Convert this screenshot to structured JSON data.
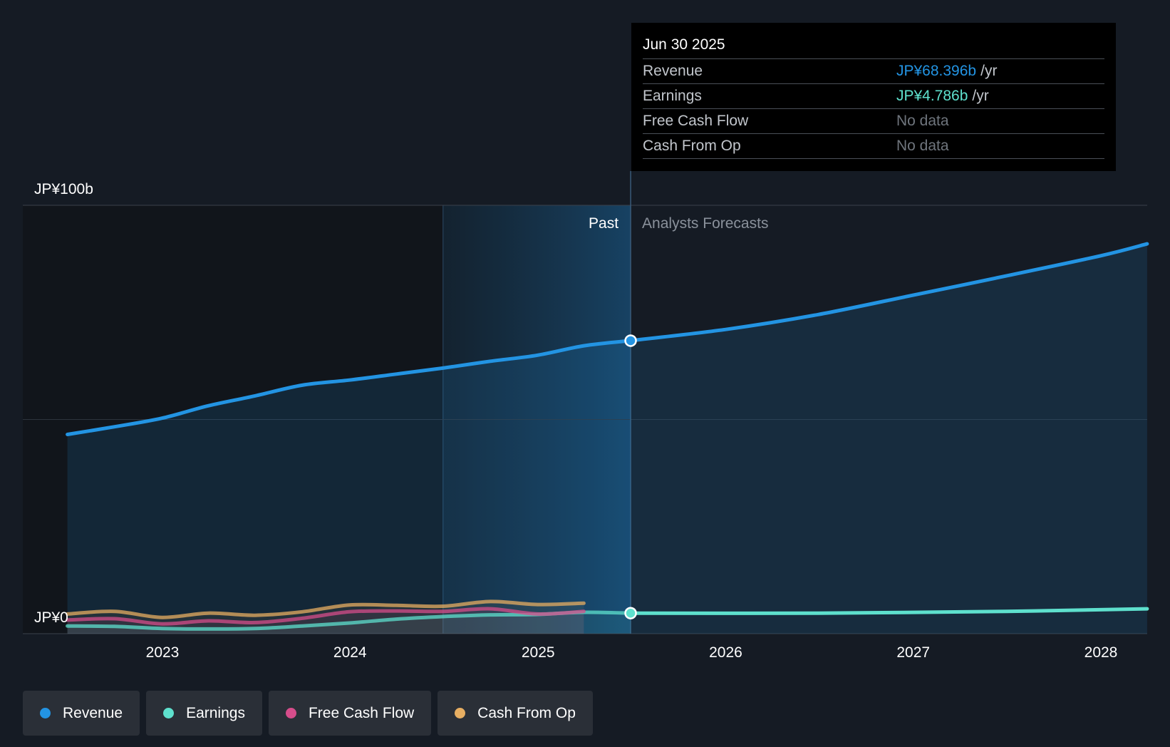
{
  "chart_data": {
    "type": "line",
    "x_unit": "date",
    "y_unit": "JP¥ billions",
    "ylim": [
      0,
      100
    ],
    "y_tick_labels": [
      {
        "value": 100,
        "label": "JP¥100b"
      },
      {
        "value": 0,
        "label": "JP¥0"
      }
    ],
    "x_ticks": [
      "2023",
      "2024",
      "2025",
      "2026",
      "2027",
      "2028"
    ],
    "x_range": [
      "2022-06-30",
      "2028-03-31"
    ],
    "segments": {
      "past_label": "Past",
      "forecast_label": "Analysts Forecasts",
      "highlight_start": "2024-06-30",
      "divider": "2025-06-30"
    },
    "series": [
      {
        "name": "Revenue",
        "color": "#2394e3",
        "points": [
          [
            "2022-06-30",
            46.5
          ],
          [
            "2022-09-30",
            48.3
          ],
          [
            "2022-12-31",
            50.3
          ],
          [
            "2023-03-31",
            53.2
          ],
          [
            "2023-06-30",
            55.5
          ],
          [
            "2023-09-30",
            58.0
          ],
          [
            "2023-12-31",
            59.2
          ],
          [
            "2024-03-31",
            60.6
          ],
          [
            "2024-06-30",
            62.0
          ],
          [
            "2024-09-30",
            63.6
          ],
          [
            "2024-12-31",
            65.0
          ],
          [
            "2025-03-31",
            67.2
          ],
          [
            "2025-06-30",
            68.396
          ]
        ],
        "forecast_points": [
          [
            "2025-06-30",
            68.396
          ],
          [
            "2025-12-31",
            71.0
          ],
          [
            "2026-06-30",
            74.5
          ],
          [
            "2026-12-31",
            79.0
          ],
          [
            "2027-06-30",
            83.5
          ],
          [
            "2027-12-31",
            88.2
          ],
          [
            "2028-03-31",
            91.0
          ]
        ]
      },
      {
        "name": "Earnings",
        "color": "#5ee0cd",
        "points": [
          [
            "2022-06-30",
            1.8
          ],
          [
            "2022-09-30",
            1.7
          ],
          [
            "2022-12-31",
            1.2
          ],
          [
            "2023-03-31",
            1.1
          ],
          [
            "2023-06-30",
            1.2
          ],
          [
            "2023-09-30",
            1.8
          ],
          [
            "2023-12-31",
            2.5
          ],
          [
            "2024-03-31",
            3.4
          ],
          [
            "2024-06-30",
            4.0
          ],
          [
            "2024-09-30",
            4.4
          ],
          [
            "2024-12-31",
            4.5
          ],
          [
            "2025-03-31",
            5.0
          ],
          [
            "2025-06-30",
            4.786
          ]
        ],
        "forecast_points": [
          [
            "2025-06-30",
            4.786
          ],
          [
            "2026-06-30",
            4.8
          ],
          [
            "2027-06-30",
            5.2
          ],
          [
            "2028-03-31",
            5.8
          ]
        ]
      },
      {
        "name": "Free Cash Flow",
        "color": "#d64d8b",
        "points": [
          [
            "2022-06-30",
            3.2
          ],
          [
            "2022-09-30",
            3.5
          ],
          [
            "2022-12-31",
            2.3
          ],
          [
            "2023-03-31",
            3.0
          ],
          [
            "2023-06-30",
            2.6
          ],
          [
            "2023-09-30",
            3.6
          ],
          [
            "2023-12-31",
            5.1
          ],
          [
            "2024-03-31",
            5.3
          ],
          [
            "2024-06-30",
            5.2
          ],
          [
            "2024-09-30",
            5.8
          ],
          [
            "2024-12-31",
            4.6
          ],
          [
            "2025-03-31",
            5.2
          ]
        ]
      },
      {
        "name": "Cash From Op",
        "color": "#e7ae62",
        "points": [
          [
            "2022-06-30",
            4.6
          ],
          [
            "2022-09-30",
            5.2
          ],
          [
            "2022-12-31",
            3.8
          ],
          [
            "2023-03-31",
            4.8
          ],
          [
            "2023-06-30",
            4.3
          ],
          [
            "2023-09-30",
            5.1
          ],
          [
            "2023-12-31",
            6.7
          ],
          [
            "2024-03-31",
            6.6
          ],
          [
            "2024-06-30",
            6.4
          ],
          [
            "2024-09-30",
            7.5
          ],
          [
            "2024-12-31",
            6.8
          ],
          [
            "2025-03-31",
            7.1
          ]
        ]
      }
    ]
  },
  "tooltip": {
    "date": "Jun 30 2025",
    "rows": [
      {
        "label": "Revenue",
        "value": "JP¥68.396b",
        "unit": "/yr",
        "color": "#2394e3"
      },
      {
        "label": "Earnings",
        "value": "JP¥4.786b",
        "unit": "/yr",
        "color": "#5ee0cd"
      },
      {
        "label": "Free Cash Flow",
        "value": "No data",
        "unit": ""
      },
      {
        "label": "Cash From Op",
        "value": "No data",
        "unit": ""
      }
    ]
  },
  "legend": [
    {
      "label": "Revenue",
      "color": "#2394e3"
    },
    {
      "label": "Earnings",
      "color": "#5ee0cd"
    },
    {
      "label": "Free Cash Flow",
      "color": "#d64d8b"
    },
    {
      "label": "Cash From Op",
      "color": "#e7ae62"
    }
  ]
}
